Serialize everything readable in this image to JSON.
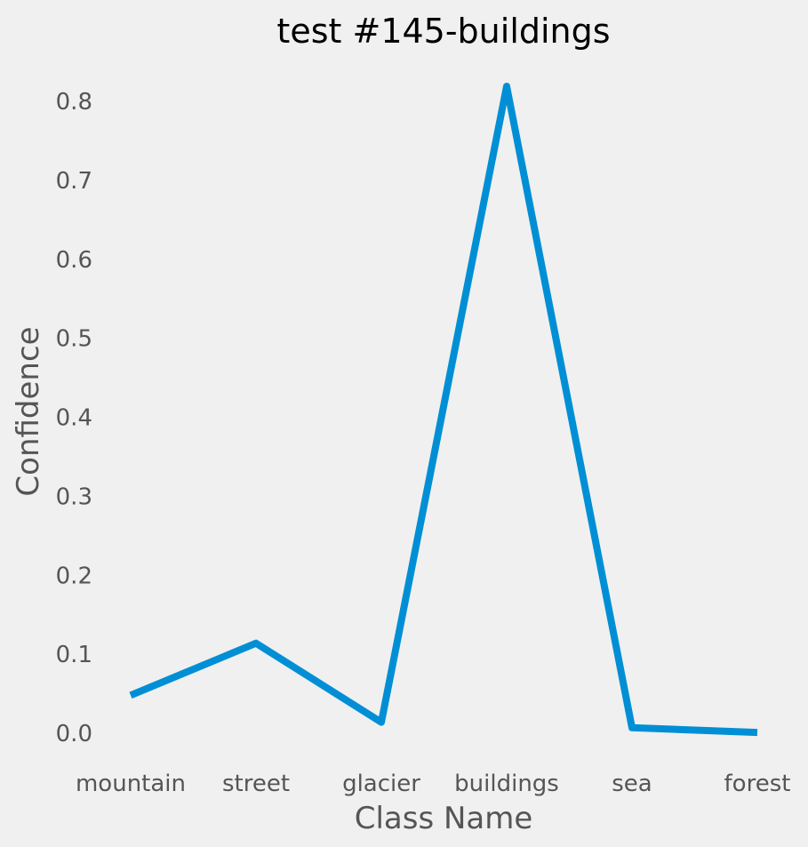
{
  "chart_data": {
    "type": "line",
    "title": "test #145-buildings",
    "xlabel": "Class Name",
    "ylabel": "Confidence",
    "categories": [
      "mountain",
      "street",
      "glacier",
      "buildings",
      "sea",
      "forest"
    ],
    "series": [
      {
        "values": [
          0.048,
          0.114,
          0.014,
          0.819,
          0.007,
          0.001
        ]
      }
    ],
    "yticks": [
      "0.0",
      "0.1",
      "0.2",
      "0.3",
      "0.4",
      "0.5",
      "0.6",
      "0.7",
      "0.8"
    ],
    "ylim": [
      -0.04,
      0.86
    ],
    "grid": false,
    "line_color": "#008fd5",
    "background_color": "#f0f0f0"
  }
}
